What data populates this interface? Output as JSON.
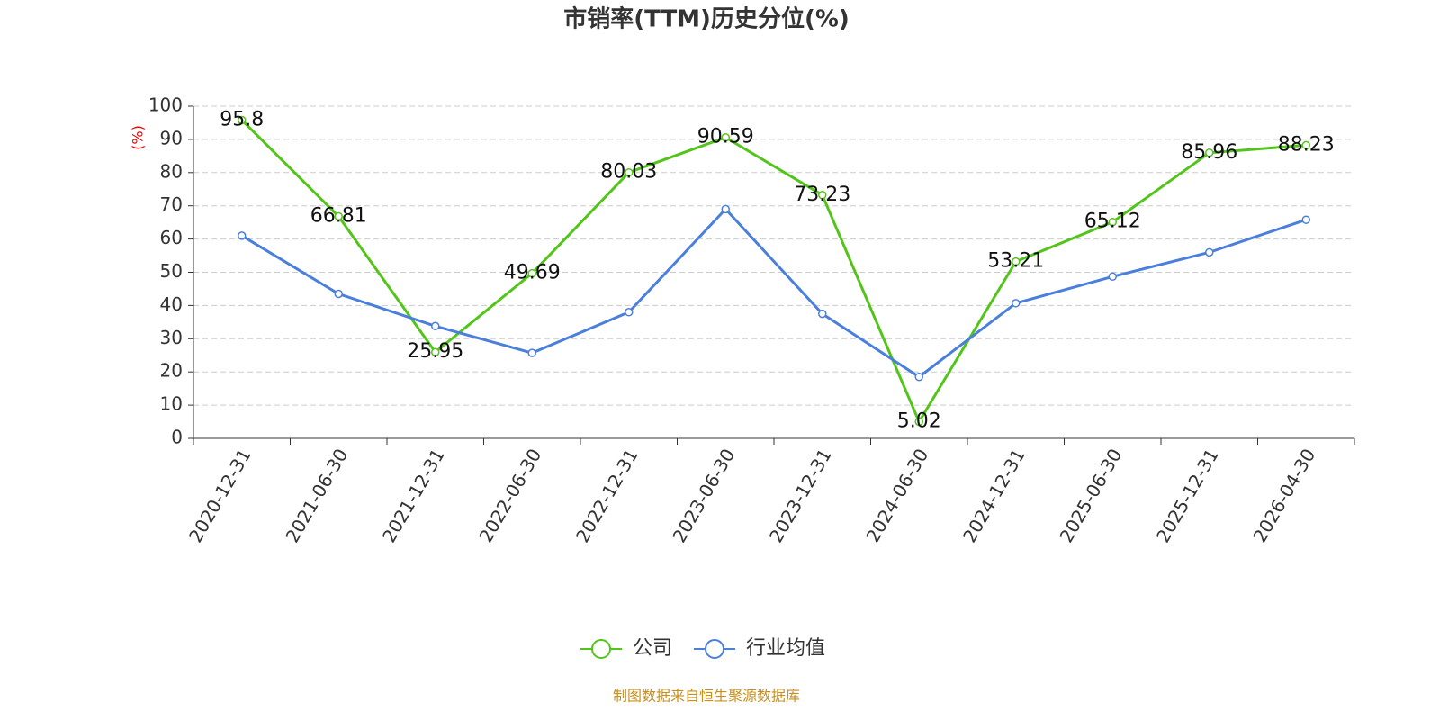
{
  "chart_data": {
    "type": "line",
    "title": "市销率(TTM)历史分位(%)",
    "y_label": "(%)",
    "source": "制图数据来自恒生聚源数据库",
    "categories": [
      "2020-12-31",
      "2021-06-30",
      "2021-12-31",
      "2022-06-30",
      "2022-12-31",
      "2023-06-30",
      "2023-12-31",
      "2024-06-30",
      "2024-12-31",
      "2025-06-30",
      "2025-12-31",
      "2026-04-30"
    ],
    "series": [
      {
        "name": "公司",
        "color": "#52c41a",
        "show_labels": true,
        "values": [
          95.8,
          66.81,
          25.95,
          49.69,
          80.03,
          90.59,
          73.23,
          5.02,
          53.21,
          65.12,
          85.96,
          88.23
        ]
      },
      {
        "name": "行业均值",
        "color": "#4a7fdc",
        "show_labels": false,
        "values": [
          61,
          43.5,
          33.8,
          25.7,
          38,
          69,
          37.5,
          18.5,
          40.7,
          48.7,
          56,
          65.8
        ]
      }
    ],
    "ylim": [
      0,
      100
    ],
    "yticks": [
      0,
      10,
      20,
      30,
      40,
      50,
      60,
      70,
      80,
      90,
      100
    ],
    "grid": true,
    "legend": "bottom"
  }
}
